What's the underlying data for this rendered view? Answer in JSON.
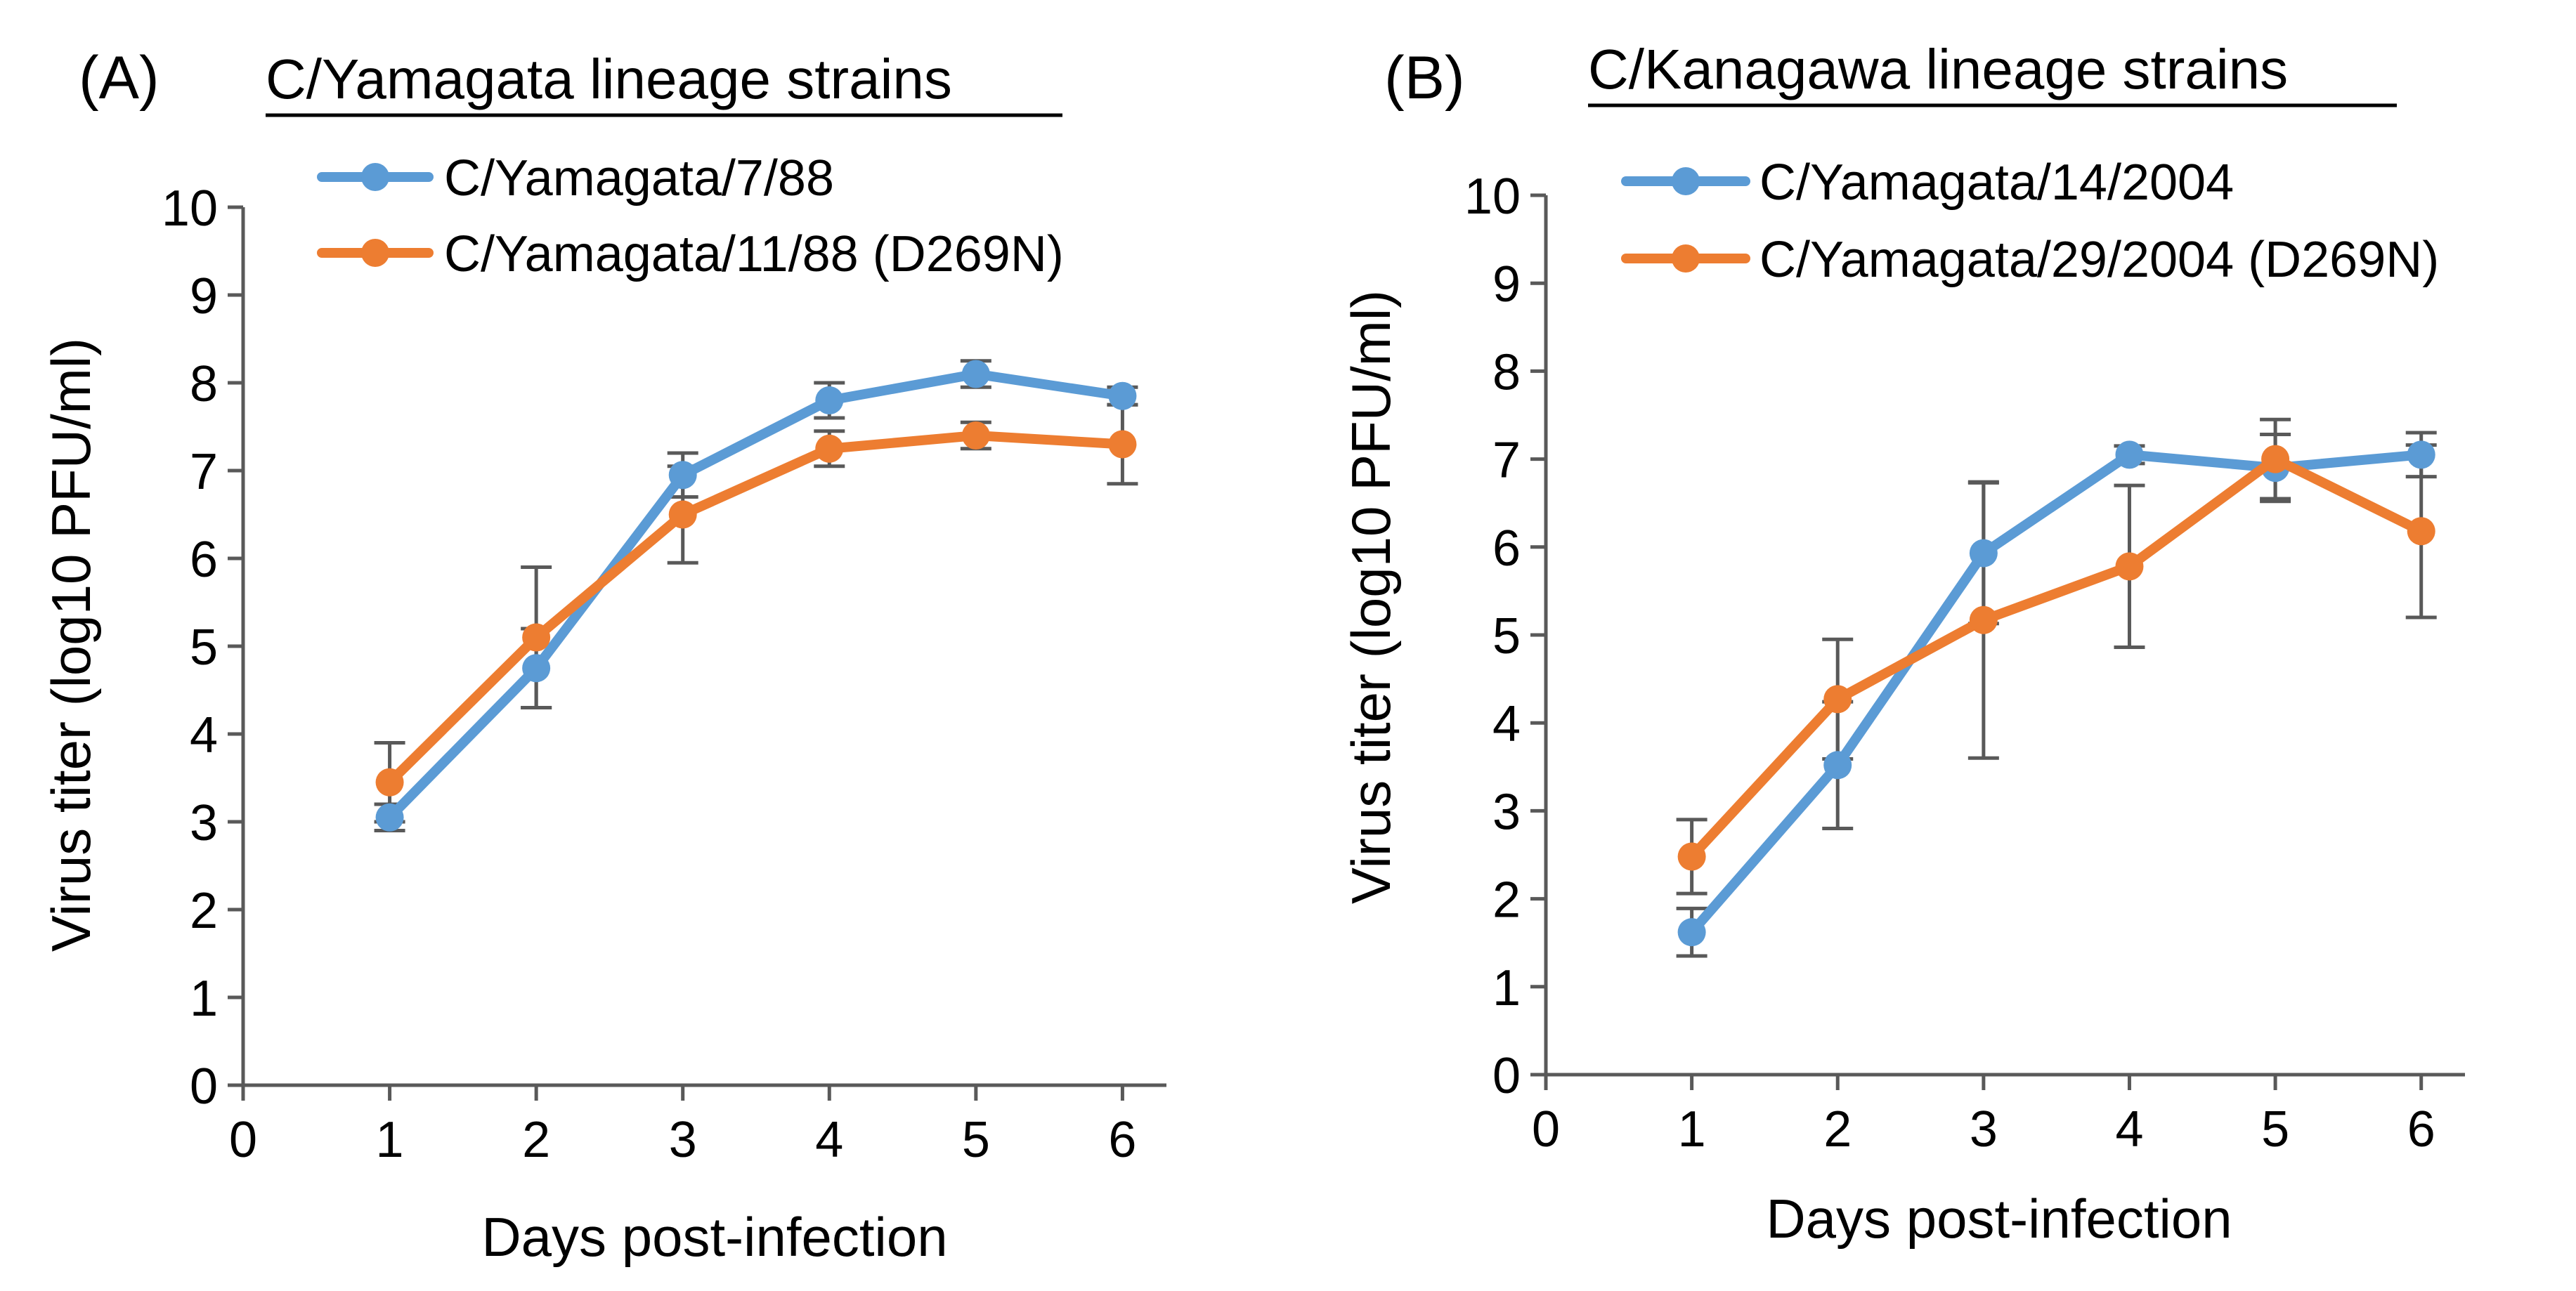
{
  "colors": {
    "series_a": "#5B9BD5",
    "series_b": "#ED7D31",
    "axis": "#595959",
    "errorbar": "#595959"
  },
  "chart_data": [
    {
      "panel_label": "(A)",
      "type": "line",
      "title": "C/Yamagata lineage strains",
      "xlabel": "Days post-infection",
      "ylabel": "Virus titer (log10 PFU/ml)",
      "xlim": [
        0,
        6.3
      ],
      "ylim": [
        0,
        10
      ],
      "xticks": [
        0,
        1,
        2,
        3,
        4,
        5,
        6
      ],
      "yticks": [
        0,
        1,
        2,
        3,
        4,
        5,
        6,
        7,
        8,
        9,
        10
      ],
      "x": [
        1,
        2,
        3,
        4,
        5,
        6
      ],
      "legend_position": "top-left",
      "series": [
        {
          "name": "C/Yamagata/7/88",
          "color": "#5B9BD5",
          "values": [
            3.05,
            4.75,
            6.95,
            7.8,
            8.1,
            7.85
          ],
          "errors": [
            0.15,
            0.45,
            0.25,
            0.2,
            0.15,
            0.1
          ]
        },
        {
          "name": "C/Yamagata/11/88 (D269N)",
          "color": "#ED7D31",
          "values": [
            3.45,
            5.1,
            6.5,
            7.25,
            7.4,
            7.3
          ],
          "errors": [
            0.45,
            0.8,
            0.55,
            0.2,
            0.15,
            0.45
          ]
        }
      ]
    },
    {
      "panel_label": "(B)",
      "type": "line",
      "title": "C/Kanagawa lineage strains",
      "xlabel": "Days post-infection",
      "ylabel": "Virus titer (log10 PFU/ml)",
      "xlim": [
        0,
        6.3
      ],
      "ylim": [
        0,
        10
      ],
      "xticks": [
        0,
        1,
        2,
        3,
        4,
        5,
        6
      ],
      "yticks": [
        0,
        1,
        2,
        3,
        4,
        5,
        6,
        7,
        8,
        9,
        10
      ],
      "x": [
        1,
        2,
        3,
        4,
        5,
        6
      ],
      "legend_position": "top-left",
      "series": [
        {
          "name": "C/Yamagata/14/2004",
          "color": "#5B9BD5",
          "values": [
            1.62,
            3.52,
            5.93,
            7.05,
            6.9,
            7.05
          ],
          "errors": [
            0.27,
            0.72,
            0.8,
            0.1,
            0.38,
            0.25
          ]
        },
        {
          "name": "C/Yamagata/29/2004 (D269N)",
          "color": "#ED7D31",
          "values": [
            2.48,
            4.27,
            5.17,
            5.78,
            7.0,
            6.18
          ],
          "errors": [
            0.42,
            0.68,
            1.57,
            0.92,
            0.45,
            0.98
          ]
        }
      ]
    }
  ]
}
